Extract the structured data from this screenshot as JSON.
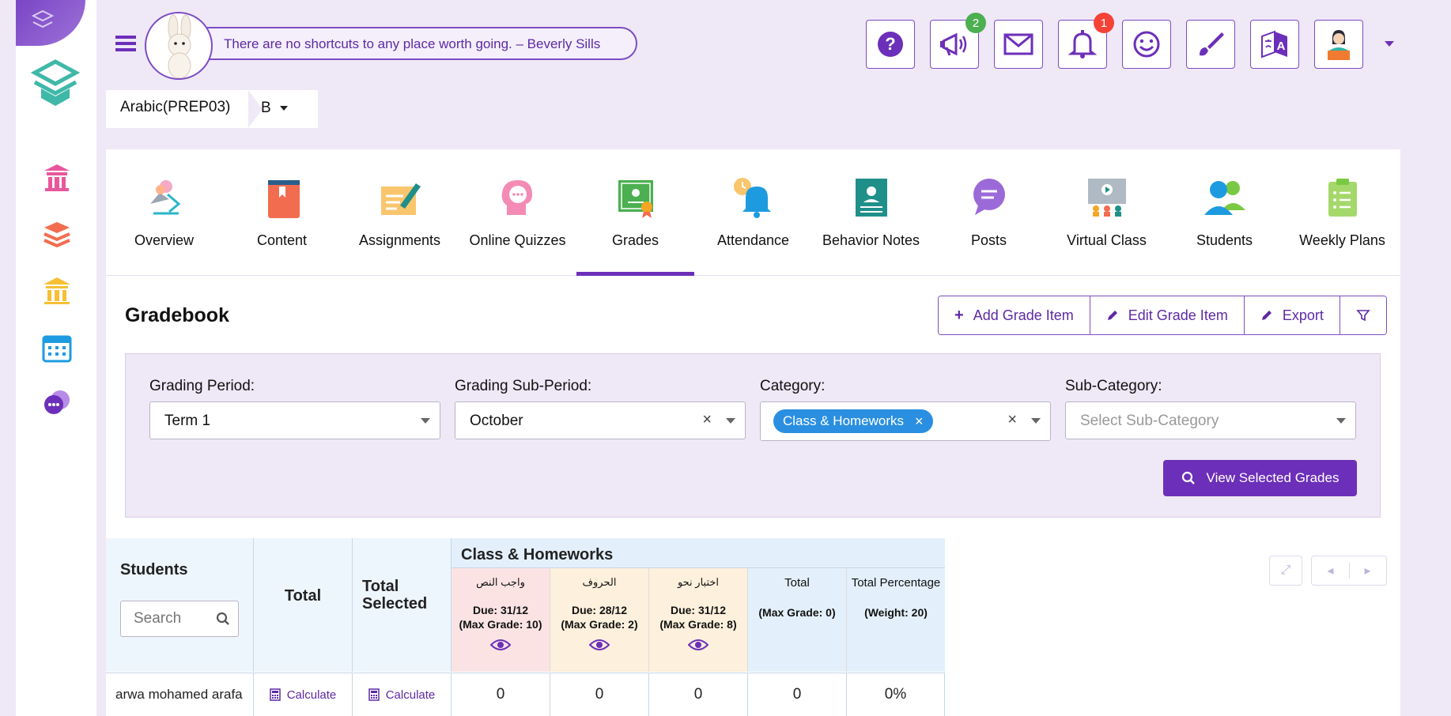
{
  "quote": {
    "text": "There are no shortcuts to any place worth going. – Beverly Sills"
  },
  "header": {
    "announcements_badge": "2",
    "notifications_badge": "1"
  },
  "course": {
    "name": "Arabic(PREP03)",
    "section": "B"
  },
  "tabs": [
    {
      "label": "Overview"
    },
    {
      "label": "Content"
    },
    {
      "label": "Assignments"
    },
    {
      "label": "Online Quizzes"
    },
    {
      "label": "Grades"
    },
    {
      "label": "Attendance"
    },
    {
      "label": "Behavior Notes"
    },
    {
      "label": "Posts"
    },
    {
      "label": "Virtual Class"
    },
    {
      "label": "Students"
    },
    {
      "label": "Weekly Plans"
    }
  ],
  "gradebook": {
    "title": "Gradebook",
    "actions": {
      "add": "Add Grade Item",
      "edit": "Edit Grade Item",
      "export": "Export"
    }
  },
  "filters": {
    "grading_period": {
      "label": "Grading Period:",
      "value": "Term 1"
    },
    "sub_period": {
      "label": "Grading Sub-Period:",
      "value": "October"
    },
    "category": {
      "label": "Category:",
      "chip": "Class & Homeworks"
    },
    "sub_category": {
      "label": "Sub-Category:",
      "placeholder": "Select Sub-Category"
    },
    "view_button": "View Selected Grades"
  },
  "grid": {
    "students_header": "Students",
    "search_placeholder": "Search",
    "total_header": "Total",
    "total_selected_header": "Total Selected",
    "category_header": "Class & Homeworks",
    "items": [
      {
        "title": "واجب النص",
        "due": "Due: 31/12",
        "max": "(Max Grade: 10)",
        "color": "#fbe3e4"
      },
      {
        "title": "الحروف",
        "due": "Due: 28/12",
        "max": "(Max Grade: 2)",
        "color": "#fdf0dc"
      },
      {
        "title": "اختبار نحو",
        "due": "Due: 31/12",
        "max": "(Max Grade: 8)",
        "color": "#fdf0dc"
      }
    ],
    "total_col": {
      "title": "Total",
      "sub": "(Max Grade: 0)"
    },
    "percent_col": {
      "title": "Total Percentage",
      "sub": "(Weight: 20)"
    },
    "rows": [
      {
        "student": "arwa mohamed arafa",
        "total": "Calculate",
        "total_selected": "Calculate",
        "grades": [
          "0",
          "0",
          "0"
        ],
        "cat_total": "0",
        "percent": "0%"
      }
    ]
  },
  "colors": {
    "primary": "#6c2fb9",
    "chip": "#2a8fe0",
    "badge_green": "#4caf50",
    "badge_red": "#f44336"
  }
}
